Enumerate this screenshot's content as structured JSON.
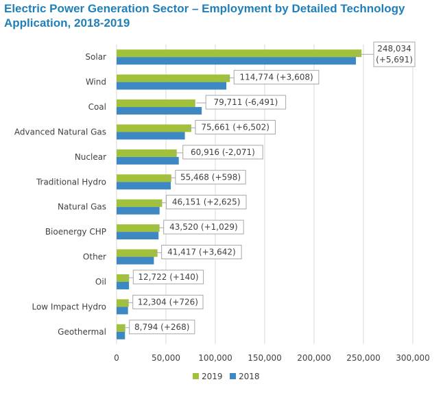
{
  "title": "Electric Power Generation Sector – Employment by Detailed Technology Application, 2018-2019",
  "colors": {
    "title": "#1f7fb8",
    "series_2019": "#a2c13b",
    "series_2018": "#3d87c2"
  },
  "chart_data": {
    "type": "bar",
    "orientation": "horizontal",
    "categories": [
      "Solar",
      "Wind",
      "Coal",
      "Advanced Natural Gas",
      "Nuclear",
      "Traditional  Hydro",
      "Natural Gas",
      "Bioenergy CHP",
      "Other",
      "Oil",
      "Low Impact  Hydro",
      "Geothermal"
    ],
    "series": [
      {
        "name": "2019",
        "color": "#a2c13b",
        "values": [
          248034,
          114774,
          79711,
          75661,
          60916,
          55468,
          46151,
          43520,
          41417,
          12722,
          12304,
          8794
        ]
      },
      {
        "name": "2018",
        "color": "#3d87c2",
        "values": [
          242343,
          111166,
          86202,
          69159,
          62987,
          54870,
          43526,
          42491,
          37775,
          12582,
          11578,
          8526
        ]
      }
    ],
    "data_labels": [
      "248,034 (+5,691)",
      "114,774 (+3,608)",
      "79,711 (-6,491)",
      "75,661 (+6,502)",
      "60,916 (-2,071)",
      "55,468 (+598)",
      "46,151 (+2,625)",
      "43,520 (+1,029)",
      "41,417 (+3,642)",
      "12,722 (+140)",
      "12,304 (+726)",
      "8,794 (+268)"
    ],
    "xlim": [
      0,
      300000
    ],
    "xticks": [
      0,
      50000,
      100000,
      150000,
      200000,
      250000,
      300000
    ],
    "xtick_labels": [
      "0",
      "50,000",
      "100,000",
      "150,000",
      "200,000",
      "250,000",
      "300,000"
    ],
    "grid": "vertical",
    "legend": "bottom-center"
  }
}
